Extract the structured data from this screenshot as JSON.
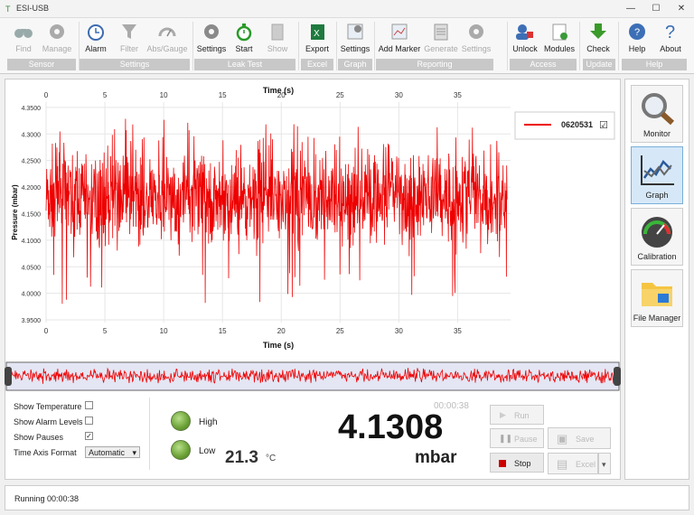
{
  "window": {
    "title": "ESI-USB",
    "min": "—",
    "max": "☐",
    "close": "✕"
  },
  "ribbon": {
    "buttons": [
      {
        "label": "Find",
        "icon": "binoculars-icon",
        "enabled": false
      },
      {
        "label": "Manage",
        "icon": "gear-icon",
        "enabled": false
      },
      {
        "label": "Alarm",
        "icon": "alarm-clock-icon",
        "enabled": true
      },
      {
        "label": "Filter",
        "icon": "funnel-icon",
        "enabled": false
      },
      {
        "label": "Abs/Gauge",
        "icon": "gauge-icon",
        "enabled": false
      },
      {
        "label": "Settings",
        "icon": "gear-icon",
        "enabled": true
      },
      {
        "label": "Start",
        "icon": "stopwatch-icon",
        "enabled": true
      },
      {
        "label": "Show",
        "icon": "clipboard-icon",
        "enabled": false
      },
      {
        "label": "Export",
        "icon": "excel-icon",
        "enabled": true
      },
      {
        "label": "Settings",
        "icon": "graph-settings-icon",
        "enabled": true
      },
      {
        "label": "Add Marker",
        "icon": "add-marker-icon",
        "enabled": true
      },
      {
        "label": "Generate",
        "icon": "report-icon",
        "enabled": false
      },
      {
        "label": "Settings",
        "icon": "gear-icon",
        "enabled": false
      },
      {
        "label": "Unlock",
        "icon": "users-icon",
        "enabled": true
      },
      {
        "label": "Modules",
        "icon": "module-icon",
        "enabled": true
      },
      {
        "label": "Check",
        "icon": "download-arrow-icon",
        "enabled": true
      },
      {
        "label": "Help",
        "icon": "help-icon",
        "enabled": true
      },
      {
        "label": "About",
        "icon": "question-icon",
        "enabled": true
      }
    ],
    "groups": [
      "Sensor",
      "Settings",
      "Leak Test",
      "Excel",
      "Graph",
      "Reporting",
      "Access",
      "Update",
      "Help"
    ]
  },
  "chart_data": {
    "type": "line",
    "title": "",
    "xlabel": "Time (s)",
    "ylabel": "Pressure (mbar)",
    "xlim": [
      0,
      39.5
    ],
    "ylim": [
      3.945,
      4.36
    ],
    "x_ticks": [
      0,
      5,
      10,
      15,
      20,
      25,
      30,
      35
    ],
    "y_ticks": [
      "3.9500",
      "4.0000",
      "4.0500",
      "4.1000",
      "4.1500",
      "4.2000",
      "4.2500",
      "4.3000",
      "4.3500"
    ],
    "series": [
      {
        "name": "0620531",
        "color": "#ee0000",
        "x_range": [
          0,
          39.2
        ],
        "mean": 4.18,
        "noise_band": [
          4.06,
          4.3
        ],
        "extremes": [
          3.98,
          4.335
        ]
      }
    ],
    "legend": {
      "label": "0620531",
      "checked": "☑",
      "placement": "top-right"
    },
    "grid": true
  },
  "options": {
    "show_temperature": {
      "label": "Show Temperature",
      "checked": false
    },
    "show_alarm_levels": {
      "label": "Show Alarm Levels",
      "checked": false
    },
    "show_pauses": {
      "label": "Show Pauses",
      "checked": true
    },
    "time_axis_format": {
      "label": "Time Axis Format",
      "value": "Automatic"
    }
  },
  "readout": {
    "elapsed": "00:00:38",
    "high_label": "High",
    "low_label": "Low",
    "temperature": "21.3",
    "temp_unit": "°C",
    "value": "4.1308",
    "unit": "mbar"
  },
  "controls": {
    "run": "Run",
    "pause": "Pause",
    "stop": "Stop",
    "save": "Save",
    "excel": "Excel"
  },
  "nav": [
    {
      "label": "Monitor",
      "icon": "magnifier-icon"
    },
    {
      "label": "Graph",
      "icon": "graph-icon"
    },
    {
      "label": "Calibration",
      "icon": "gauge-dial-icon"
    },
    {
      "label": "File Manager",
      "icon": "folder-icon"
    }
  ],
  "status": {
    "text": "Running 00:00:38"
  }
}
